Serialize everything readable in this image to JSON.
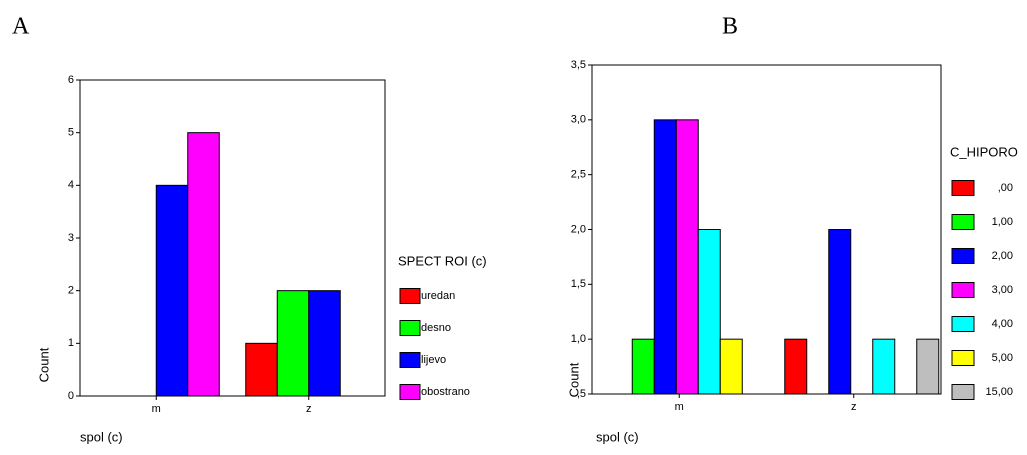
{
  "chart_data": [
    {
      "type": "bar",
      "title": "A",
      "xlabel": "spol (c)",
      "ylabel": "Count",
      "legend_title": "SPECT ROI (c)",
      "categories": [
        "m",
        "z"
      ],
      "series": [
        {
          "name": "uredan",
          "color": "#ff0000",
          "values": [
            0,
            1
          ]
        },
        {
          "name": "desno",
          "color": "#00ff00",
          "values": [
            0,
            2
          ]
        },
        {
          "name": "lijevo",
          "color": "#0000ff",
          "values": [
            4,
            2
          ]
        },
        {
          "name": "obostrano",
          "color": "#ff00ff",
          "values": [
            5,
            0
          ]
        }
      ],
      "ylim": [
        0,
        6
      ],
      "yticks": [
        0,
        1,
        2,
        3,
        4,
        5,
        6
      ],
      "legend": "right"
    },
    {
      "type": "bar",
      "title": "B",
      "xlabel": "spol (c)",
      "ylabel": "Count",
      "legend_title": "C_HIPORO",
      "categories": [
        "m",
        "z"
      ],
      "series": [
        {
          "name": ",00",
          "color": "#ff0000",
          "values": [
            null,
            1
          ]
        },
        {
          "name": "1,00",
          "color": "#00ff00",
          "values": [
            1,
            null
          ]
        },
        {
          "name": "2,00",
          "color": "#0000ff",
          "values": [
            3,
            2
          ]
        },
        {
          "name": "3,00",
          "color": "#ff00ff",
          "values": [
            3,
            null
          ]
        },
        {
          "name": "4,00",
          "color": "#00ffff",
          "values": [
            2,
            1
          ]
        },
        {
          "name": "5,00",
          "color": "#ffff00",
          "values": [
            1,
            null
          ]
        },
        {
          "name": "15,00",
          "color": "#bebebe",
          "values": [
            null,
            1
          ]
        }
      ],
      "ylim": [
        0.5,
        3.5
      ],
      "yticks": [
        {
          "value": 0.5,
          "label": ",5"
        },
        {
          "value": 1,
          "label": "1,0"
        },
        {
          "value": 1.5,
          "label": "1,5"
        },
        {
          "value": 2,
          "label": "2,0"
        },
        {
          "value": 2.5,
          "label": "2,5"
        },
        {
          "value": 3,
          "label": "3,0"
        },
        {
          "value": 3.5,
          "label": "3,5"
        }
      ],
      "legend": "right"
    }
  ]
}
